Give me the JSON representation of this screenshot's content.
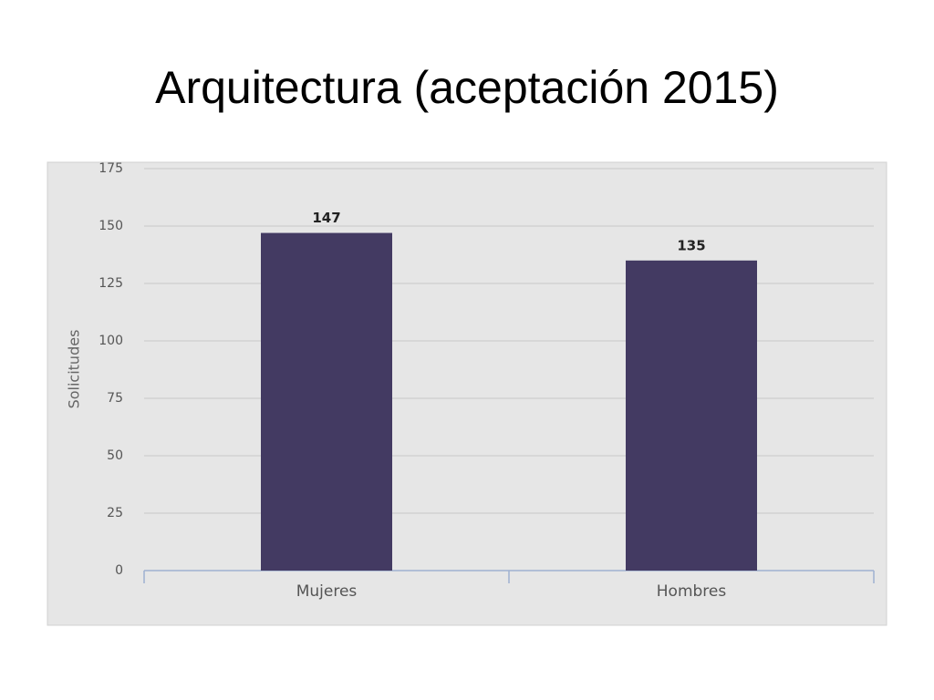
{
  "chart_data": {
    "type": "bar",
    "title": "Arquitectura (aceptación 2015)",
    "y_label": "Solicitudes",
    "categories": [
      "Mujeres",
      "Hombres"
    ],
    "values": [
      147,
      135
    ],
    "color": "#433a62",
    "ylim": [
      0,
      175
    ],
    "yticks": [
      0,
      25,
      50,
      75,
      100,
      125,
      150,
      175
    ],
    "grid": true
  }
}
